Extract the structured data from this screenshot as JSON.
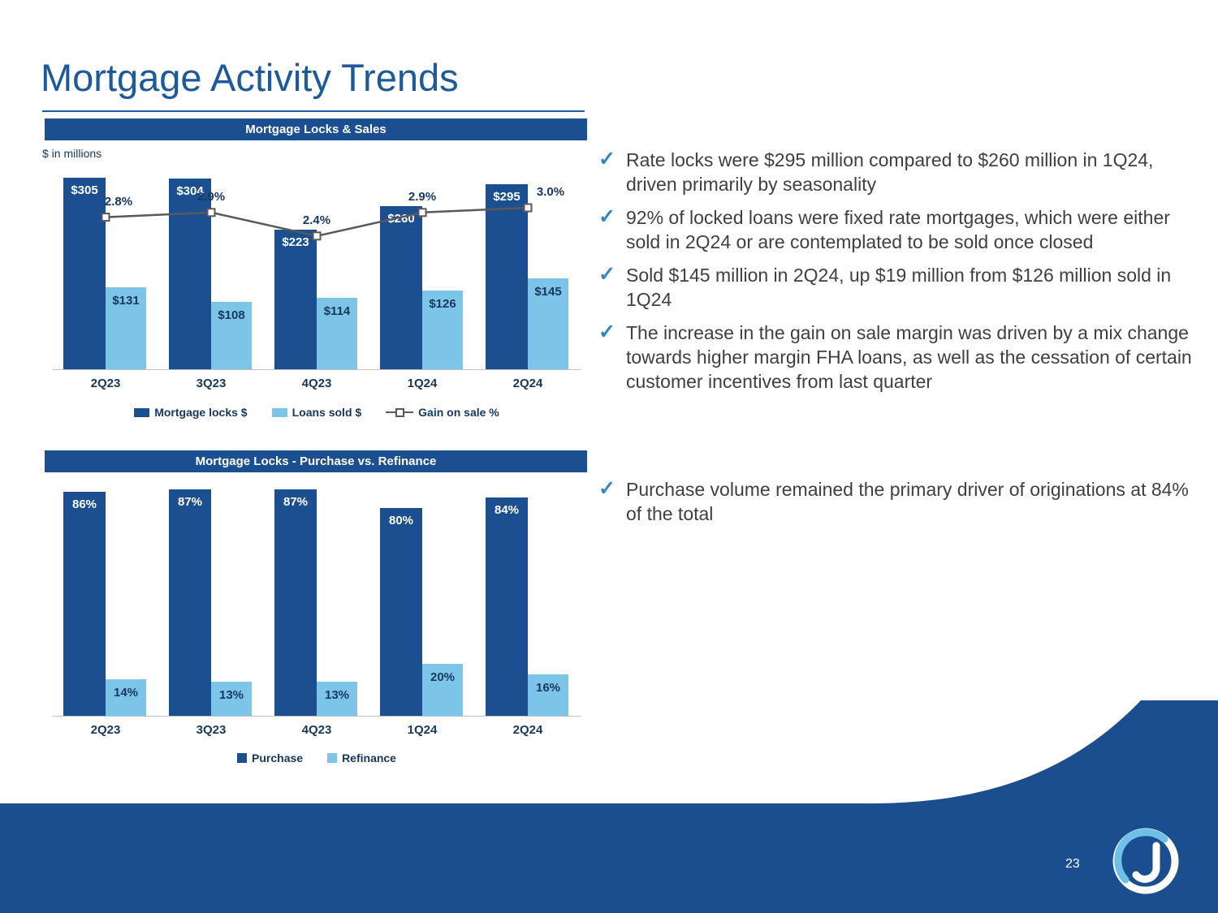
{
  "slide": {
    "title": "Mortgage Activity Trends",
    "page_number": "23"
  },
  "colors": {
    "brand_dark_blue": "#1B4F8F",
    "light_blue": "#7CC5E8",
    "title_blue": "#1C5A9C",
    "navy_text": "#17375E",
    "body_text": "#3F3F3F",
    "check_blue": "#2E86C6",
    "line_gray": "#595959",
    "footer_blue": "#1A4E8E"
  },
  "chart_data": [
    {
      "type": "bar",
      "title": "Mortgage Locks & Sales",
      "units": "$ in millions",
      "categories": [
        "2Q23",
        "3Q23",
        "4Q23",
        "1Q24",
        "2Q24"
      ],
      "series": [
        {
          "name": "Mortgage locks $",
          "kind": "bar",
          "color": "#1B4F8F",
          "values": [
            305,
            304,
            223,
            260,
            295
          ],
          "labels": [
            "$305",
            "$304",
            "$223",
            "$260",
            "$295"
          ]
        },
        {
          "name": "Loans sold $",
          "kind": "bar",
          "color": "#7CC5E8",
          "values": [
            131,
            108,
            114,
            126,
            145
          ],
          "labels": [
            "$131",
            "$108",
            "$114",
            "$126",
            "$145"
          ]
        },
        {
          "name": "Gain on sale %",
          "kind": "line",
          "color": "#595959",
          "values": [
            2.8,
            2.9,
            2.4,
            2.9,
            3.0
          ],
          "labels": [
            "2.8%",
            "2.9%",
            "2.4%",
            "2.9%",
            "3.0%"
          ]
        }
      ],
      "ylim": [
        0,
        330
      ],
      "legend_position": "bottom",
      "grid": false
    },
    {
      "type": "bar",
      "title": "Mortgage Locks - Purchase vs. Refinance",
      "categories": [
        "2Q23",
        "3Q23",
        "4Q23",
        "1Q24",
        "2Q24"
      ],
      "series": [
        {
          "name": "Purchase",
          "kind": "bar",
          "color": "#1B4F8F",
          "values": [
            86,
            87,
            87,
            80,
            84
          ],
          "labels": [
            "86%",
            "87%",
            "87%",
            "80%",
            "84%"
          ]
        },
        {
          "name": "Refinance",
          "kind": "bar",
          "color": "#7CC5E8",
          "values": [
            14,
            13,
            13,
            20,
            16
          ],
          "labels": [
            "14%",
            "13%",
            "13%",
            "20%",
            "16%"
          ]
        }
      ],
      "ylim": [
        0,
        100
      ],
      "legend_position": "bottom",
      "grid": false
    }
  ],
  "bullets": {
    "check_glyph": "✓",
    "top": [
      "Rate locks were $295 million compared to $260 million in 1Q24, driven primarily by seasonality",
      "92% of locked loans were fixed rate mortgages, which were either sold in 2Q24 or are contemplated to be sold once closed",
      "Sold $145 million in 2Q24, up $19 million from $126 million sold in 1Q24",
      "The increase in the gain on sale margin was driven by a mix change towards higher margin FHA loans, as well as the cessation of certain customer incentives from last quarter"
    ],
    "bottom": [
      "Purchase volume remained the primary driver of originations at 84% of the total"
    ]
  }
}
